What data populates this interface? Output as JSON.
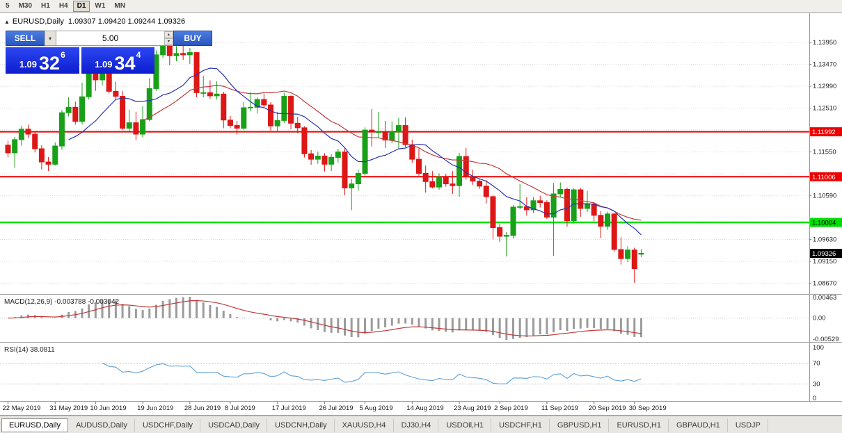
{
  "colors": {
    "candle_up": "#18a018",
    "candle_down": "#dd1616",
    "ma_fast": "#2633b4",
    "ma_slow": "#c23a3a",
    "macd_hist": "#9b9b9b",
    "macd_signal": "#c23a3a",
    "rsi_line": "#5aa0d8",
    "hline_red": "#ee0000",
    "hline_green": "#00dd00",
    "current_box": "#000000",
    "panel_blue": "#1a2ae0",
    "button_blue": "#3a66cc"
  },
  "toolbar": {
    "timeframes": [
      {
        "label": "5"
      },
      {
        "label": "M30"
      },
      {
        "label": "H1"
      },
      {
        "label": "H4"
      },
      {
        "label": "D1",
        "active": true
      },
      {
        "label": "W1"
      },
      {
        "label": "MN"
      }
    ]
  },
  "chart": {
    "title": "EURUSD,Daily",
    "ohlc": "1.09307 1.09420 1.09244 1.09326",
    "collapse_icon": "▲"
  },
  "one_click": {
    "sell_label": "SELL",
    "buy_label": "BUY",
    "volume": "5.00",
    "sell_price": {
      "small": "1.09",
      "big": "32",
      "sup": "6"
    },
    "buy_price": {
      "small": "1.09",
      "big": "34",
      "sup": "4"
    },
    "icons": {
      "dropdown": "▾",
      "spin_up": "▴",
      "spin_down": "▾"
    }
  },
  "chart_data": {
    "type": "candlestick",
    "symbol": "EURUSD",
    "period": "Daily",
    "ylim": [
      1.0848,
      1.14425
    ],
    "grid": {
      "start": 1.1395,
      "step": 0.0048,
      "count": 12
    },
    "hlines": [
      {
        "price": 1.11992,
        "color": "red"
      },
      {
        "price": 1.11006,
        "color": "red"
      },
      {
        "price": 1.10004,
        "color": "green"
      }
    ],
    "current_price": 1.09326,
    "ma": [
      {
        "type": "sma",
        "period": 10
      },
      {
        "type": "sma",
        "period": 21
      }
    ],
    "macd": {
      "label": "MACD(12,26,9)",
      "values_text": "-0.003788 -0.003042",
      "fast": 12,
      "slow": 26,
      "signal_period": 9,
      "scale": [
        "0.00463",
        "0.00",
        "-0.00529"
      ]
    },
    "rsi": {
      "label": "RSI(14)",
      "value_text": "38.0811",
      "period": 14,
      "levels": [
        70,
        30
      ],
      "scale": [
        "100",
        "70",
        "30",
        "0"
      ]
    },
    "x_ticks": [
      {
        "i": 0,
        "label": "22 May 2019"
      },
      {
        "i": 7,
        "label": "31 May 2019"
      },
      {
        "i": 13,
        "label": "10 Jun 2019"
      },
      {
        "i": 20,
        "label": "19 Jun 2019"
      },
      {
        "i": 27,
        "label": "28 Jun 2019"
      },
      {
        "i": 33,
        "label": "8 Jul 2019"
      },
      {
        "i": 40,
        "label": "17 Jul 2019"
      },
      {
        "i": 47,
        "label": "26 Jul 2019"
      },
      {
        "i": 53,
        "label": "5 Aug 2019"
      },
      {
        "i": 60,
        "label": "14 Aug 2019"
      },
      {
        "i": 67,
        "label": "23 Aug 2019"
      },
      {
        "i": 73,
        "label": "2 Sep 2019"
      },
      {
        "i": 80,
        "label": "11 Sep 2019"
      },
      {
        "i": 87,
        "label": "20 Sep 2019"
      },
      {
        "i": 93,
        "label": "30 Sep 2019"
      }
    ],
    "candles": [
      [
        1.117,
        1.118,
        1.1143,
        1.1153
      ],
      [
        1.1153,
        1.1188,
        1.112,
        1.1182
      ],
      [
        1.1182,
        1.1212,
        1.1169,
        1.1205
      ],
      [
        1.1205,
        1.1215,
        1.1186,
        1.1194
      ],
      [
        1.1194,
        1.12,
        1.1154,
        1.1162
      ],
      [
        1.1162,
        1.117,
        1.1116,
        1.1133
      ],
      [
        1.1133,
        1.1144,
        1.1113,
        1.1128
      ],
      [
        1.1128,
        1.1176,
        1.1125,
        1.1168
      ],
      [
        1.1168,
        1.1247,
        1.116,
        1.1241
      ],
      [
        1.1241,
        1.1275,
        1.1233,
        1.1253
      ],
      [
        1.1253,
        1.1265,
        1.1215,
        1.1222
      ],
      [
        1.1222,
        1.1307,
        1.1215,
        1.1276
      ],
      [
        1.1276,
        1.1348,
        1.127,
        1.1334
      ],
      [
        1.1334,
        1.1339,
        1.1289,
        1.1313
      ],
      [
        1.1313,
        1.1344,
        1.1301,
        1.1327
      ],
      [
        1.1327,
        1.1335,
        1.1283,
        1.1288
      ],
      [
        1.1288,
        1.1309,
        1.1269,
        1.1277
      ],
      [
        1.1277,
        1.1289,
        1.1203,
        1.1207
      ],
      [
        1.1207,
        1.1248,
        1.12,
        1.1219
      ],
      [
        1.1219,
        1.1243,
        1.1181,
        1.1194
      ],
      [
        1.1194,
        1.1255,
        1.1187,
        1.1226
      ],
      [
        1.1226,
        1.1317,
        1.1222,
        1.1294
      ],
      [
        1.1294,
        1.1378,
        1.1289,
        1.1368
      ],
      [
        1.1368,
        1.1412,
        1.1361,
        1.14
      ],
      [
        1.14,
        1.1403,
        1.1345,
        1.1366
      ],
      [
        1.1366,
        1.1387,
        1.1354,
        1.1371
      ],
      [
        1.1371,
        1.1391,
        1.1357,
        1.1368
      ],
      [
        1.1368,
        1.1383,
        1.1348,
        1.1373
      ],
      [
        1.1373,
        1.1374,
        1.1275,
        1.1285
      ],
      [
        1.1285,
        1.1322,
        1.1275,
        1.1285
      ],
      [
        1.1285,
        1.1312,
        1.1271,
        1.1278
      ],
      [
        1.1278,
        1.131,
        1.127,
        1.1282
      ],
      [
        1.1282,
        1.1287,
        1.1207,
        1.1225
      ],
      [
        1.1225,
        1.1234,
        1.1207,
        1.1213
      ],
      [
        1.1213,
        1.1223,
        1.1193,
        1.1207
      ],
      [
        1.1207,
        1.1265,
        1.1203,
        1.1252
      ],
      [
        1.1252,
        1.1286,
        1.1244,
        1.1253
      ],
      [
        1.1253,
        1.1275,
        1.1239,
        1.127
      ],
      [
        1.127,
        1.1283,
        1.1253,
        1.1258
      ],
      [
        1.1258,
        1.1264,
        1.1202,
        1.1212
      ],
      [
        1.1212,
        1.1243,
        1.1199,
        1.1224
      ],
      [
        1.1224,
        1.1285,
        1.1219,
        1.1277
      ],
      [
        1.1277,
        1.1279,
        1.1205,
        1.1218
      ],
      [
        1.1218,
        1.1232,
        1.1196,
        1.1208
      ],
      [
        1.1208,
        1.1211,
        1.1143,
        1.1151
      ],
      [
        1.1151,
        1.1159,
        1.1127,
        1.1139
      ],
      [
        1.1139,
        1.1156,
        1.1129,
        1.1146
      ],
      [
        1.1146,
        1.1152,
        1.1112,
        1.1128
      ],
      [
        1.1128,
        1.115,
        1.1113,
        1.1143
      ],
      [
        1.1143,
        1.1162,
        1.1131,
        1.1155
      ],
      [
        1.1155,
        1.1163,
        1.106,
        1.1076
      ],
      [
        1.1076,
        1.1096,
        1.1027,
        1.1085
      ],
      [
        1.1085,
        1.1116,
        1.107,
        1.1108
      ],
      [
        1.1108,
        1.1209,
        1.1103,
        1.1203
      ],
      [
        1.1203,
        1.1249,
        1.1167,
        1.1199
      ],
      [
        1.1199,
        1.1243,
        1.1185,
        1.1199
      ],
      [
        1.1199,
        1.1223,
        1.1164,
        1.1181
      ],
      [
        1.1181,
        1.1222,
        1.1174,
        1.1199
      ],
      [
        1.1199,
        1.123,
        1.1162,
        1.1213
      ],
      [
        1.1213,
        1.1231,
        1.1165,
        1.1171
      ],
      [
        1.1171,
        1.1182,
        1.1131,
        1.1139
      ],
      [
        1.1139,
        1.1163,
        1.1103,
        1.1108
      ],
      [
        1.1108,
        1.1125,
        1.1066,
        1.109
      ],
      [
        1.109,
        1.1113,
        1.1075,
        1.1078
      ],
      [
        1.1078,
        1.1108,
        1.1072,
        1.11
      ],
      [
        1.11,
        1.1107,
        1.1079,
        1.1085
      ],
      [
        1.1085,
        1.1113,
        1.1063,
        1.1081
      ],
      [
        1.1081,
        1.1153,
        1.1057,
        1.1145
      ],
      [
        1.1145,
        1.1164,
        1.1094,
        1.1101
      ],
      [
        1.1101,
        1.1116,
        1.1083,
        1.1091
      ],
      [
        1.1091,
        1.1097,
        1.1074,
        1.108
      ],
      [
        1.108,
        1.1093,
        1.1042,
        1.1057
      ],
      [
        1.1057,
        1.1061,
        1.0963,
        1.0989
      ],
      [
        1.0989,
        1.0997,
        1.0958,
        1.097
      ],
      [
        1.097,
        1.0979,
        1.0926,
        1.0972
      ],
      [
        1.0972,
        1.1039,
        1.0965,
        1.1034
      ],
      [
        1.1034,
        1.1085,
        1.1029,
        1.1035
      ],
      [
        1.1035,
        1.1056,
        1.1015,
        1.1028
      ],
      [
        1.1028,
        1.1056,
        1.1021,
        1.1048
      ],
      [
        1.1048,
        1.1059,
        1.1033,
        1.1044
      ],
      [
        1.1044,
        1.1049,
        1.1008,
        1.1012
      ],
      [
        1.1012,
        1.1087,
        1.0927,
        1.1063
      ],
      [
        1.1063,
        1.1088,
        1.1056,
        1.1073
      ],
      [
        1.1073,
        1.1077,
        1.0991,
        1.1004
      ],
      [
        1.1004,
        1.1075,
        1.0998,
        1.1072
      ],
      [
        1.1072,
        1.1076,
        1.1013,
        1.1031
      ],
      [
        1.1031,
        1.1069,
        1.1023,
        1.1041
      ],
      [
        1.1041,
        1.1045,
        1.1003,
        1.1016
      ],
      [
        1.1016,
        1.1025,
        1.0966,
        1.0992
      ],
      [
        1.0992,
        1.1024,
        1.0984,
        1.1019
      ],
      [
        1.1019,
        1.1021,
        1.0936,
        1.0941
      ],
      [
        1.0941,
        1.0968,
        1.0908,
        1.0921
      ],
      [
        1.0921,
        1.0948,
        1.0913,
        1.094
      ],
      [
        1.094,
        1.0945,
        1.0868,
        1.0899
      ],
      [
        1.09307,
        1.0942,
        1.09244,
        1.09326
      ]
    ]
  },
  "tabs": [
    {
      "label": "EURUSD,Daily",
      "active": true
    },
    {
      "label": "AUDUSD,Daily"
    },
    {
      "label": "USDCHF,Daily"
    },
    {
      "label": "USDCAD,Daily"
    },
    {
      "label": "USDCNH,Daily"
    },
    {
      "label": "XAUUSD,H4"
    },
    {
      "label": "DJ30,H4"
    },
    {
      "label": "USDOil,H1"
    },
    {
      "label": "USDCHF,H1"
    },
    {
      "label": "GBPUSD,H1"
    },
    {
      "label": "EURUSD,H1"
    },
    {
      "label": "GBPAUD,H1"
    },
    {
      "label": "USDJP"
    }
  ]
}
